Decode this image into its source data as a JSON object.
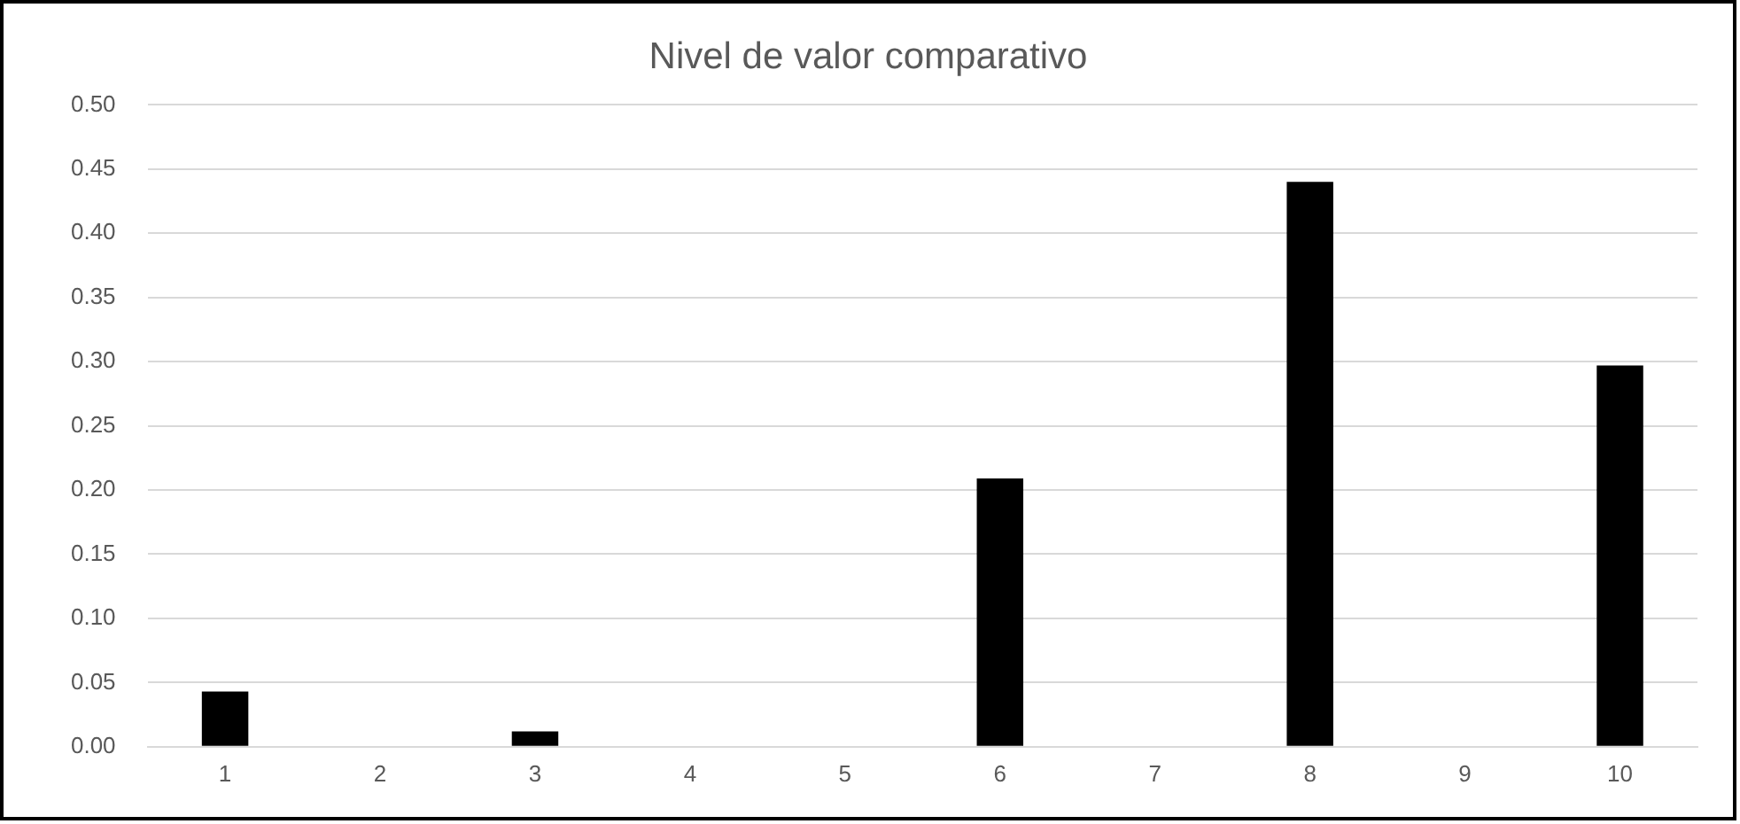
{
  "chart_data": {
    "type": "bar",
    "title": "Nivel de valor comparativo",
    "categories": [
      "1",
      "2",
      "3",
      "4",
      "5",
      "6",
      "7",
      "8",
      "9",
      "10"
    ],
    "values": [
      0.043,
      0,
      0.012,
      0,
      0,
      0.209,
      0,
      0.44,
      0,
      0.297
    ],
    "color": "#000000",
    "ylim": [
      0,
      0.5
    ],
    "yticks": [
      {
        "value": 0,
        "label": "0.00"
      },
      {
        "value": 0.05,
        "label": "0.05"
      },
      {
        "value": 0.1,
        "label": "0.10"
      },
      {
        "value": 0.15,
        "label": "0.15"
      },
      {
        "value": 0.2,
        "label": "0.20"
      },
      {
        "value": 0.25,
        "label": "0.25"
      },
      {
        "value": 0.3,
        "label": "0.30"
      },
      {
        "value": 0.35,
        "label": "0.35"
      },
      {
        "value": 0.4,
        "label": "0.40"
      },
      {
        "value": 0.45,
        "label": "0.45"
      },
      {
        "value": 0.5,
        "label": "0.50"
      }
    ],
    "grid": "y",
    "legend": false
  }
}
